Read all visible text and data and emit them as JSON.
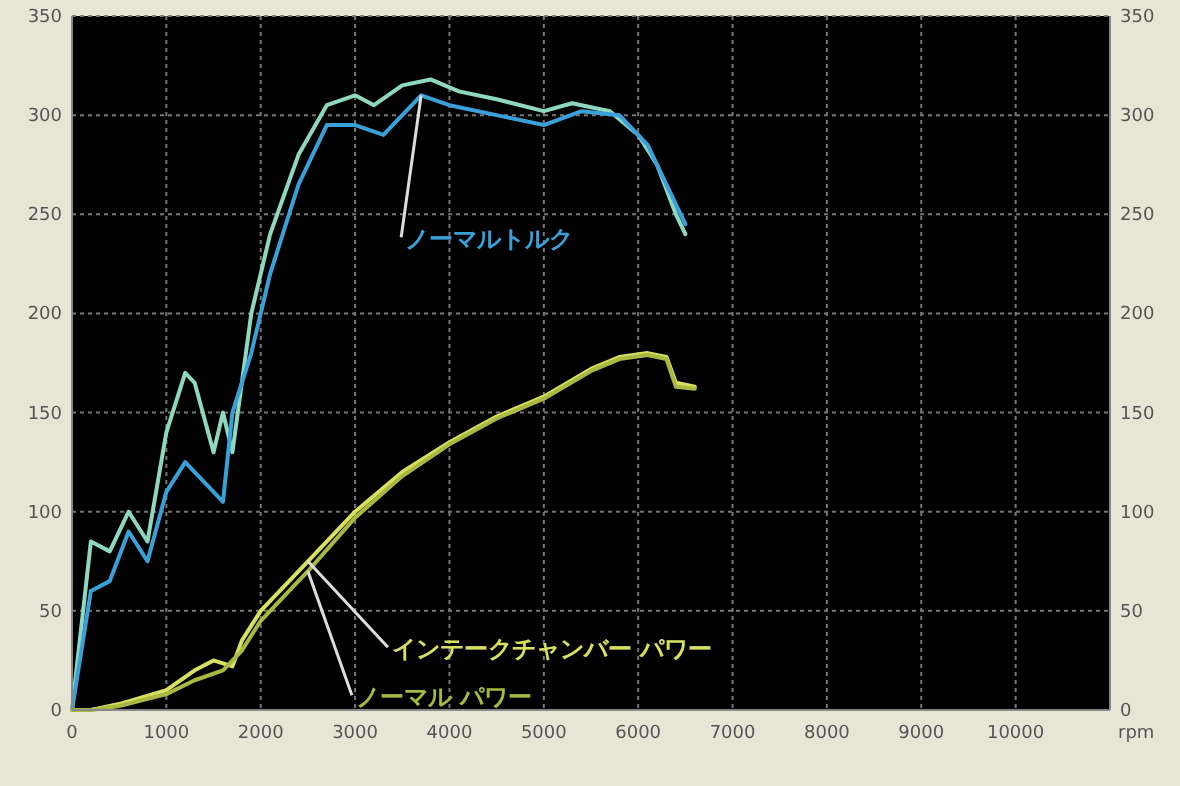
{
  "chart_data": {
    "type": "line",
    "xlabel": "rpm",
    "xlim": [
      0,
      11000
    ],
    "xticks": [
      0,
      1000,
      2000,
      3000,
      4000,
      5000,
      6000,
      7000,
      8000,
      9000,
      10000
    ],
    "ylim": [
      0,
      350
    ],
    "yticks": [
      0,
      50,
      100,
      150,
      200,
      250,
      300,
      350
    ],
    "y2lim": [
      0,
      350
    ],
    "y2ticks": [
      0,
      50,
      100,
      150,
      200,
      250,
      300,
      350
    ],
    "grid": true,
    "marker": "none",
    "line_style": "solid",
    "series": [
      {
        "color": "#8fd8c0",
        "x": [
          0,
          200,
          400,
          600,
          800,
          1000,
          1200,
          1300,
          1500,
          1600,
          1700,
          1800,
          1900,
          2100,
          2400,
          2700,
          3000,
          3200,
          3500,
          3800,
          4100,
          4500,
          5000,
          5300,
          5700,
          6000,
          6200,
          6400,
          6500
        ],
        "values": [
          0,
          85,
          80,
          100,
          85,
          140,
          170,
          165,
          130,
          150,
          130,
          165,
          200,
          240,
          280,
          305,
          310,
          305,
          315,
          318,
          312,
          308,
          302,
          306,
          302,
          290,
          275,
          250,
          240
        ]
      },
      {
        "name": "ノーマルトルク",
        "color": "#3aa0d8",
        "x": [
          0,
          200,
          400,
          600,
          800,
          1000,
          1200,
          1300,
          1500,
          1600,
          1700,
          1800,
          1900,
          2100,
          2400,
          2700,
          3000,
          3300,
          3700,
          4000,
          4500,
          5000,
          5400,
          5800,
          6100,
          6300,
          6500
        ],
        "values": [
          0,
          60,
          65,
          90,
          75,
          110,
          125,
          120,
          110,
          105,
          150,
          165,
          180,
          220,
          265,
          295,
          295,
          290,
          310,
          305,
          300,
          295,
          302,
          300,
          285,
          265,
          245
        ]
      },
      {
        "name": "インテークチャンバー パワー",
        "color": "#d8e060",
        "x": [
          0,
          200,
          500,
          1000,
          1300,
          1500,
          1700,
          1800,
          2000,
          2500,
          3000,
          3500,
          4000,
          4500,
          5000,
          5500,
          5800,
          6100,
          6300,
          6400,
          6600
        ],
        "values": [
          0,
          0,
          3,
          10,
          20,
          25,
          22,
          35,
          50,
          75,
          100,
          120,
          135,
          148,
          158,
          172,
          178,
          180,
          178,
          165,
          163
        ]
      },
      {
        "name": "ノーマル パワー",
        "color": "#a8b840",
        "x": [
          0,
          200,
          500,
          1000,
          1300,
          1600,
          1800,
          2000,
          2500,
          3000,
          3500,
          4000,
          4500,
          5000,
          5500,
          5800,
          6100,
          6300,
          6400,
          6600
        ],
        "values": [
          0,
          0,
          2,
          8,
          15,
          20,
          30,
          45,
          70,
          97,
          118,
          134,
          147,
          157,
          171,
          177,
          179,
          177,
          163,
          162
        ]
      }
    ]
  }
}
